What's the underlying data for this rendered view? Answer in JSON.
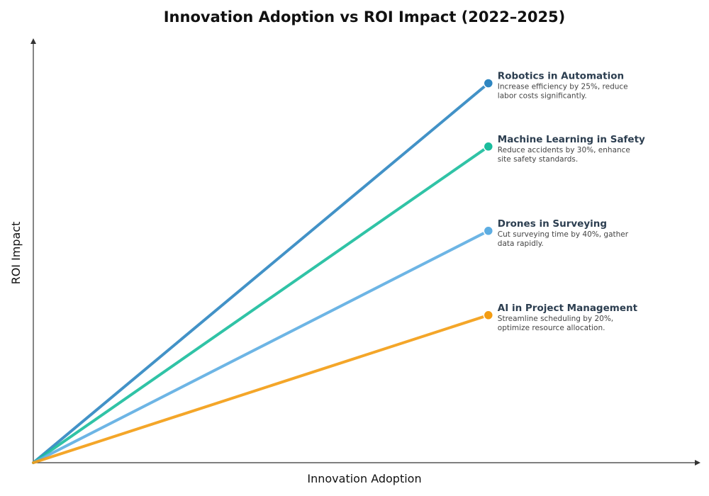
{
  "chart_data": {
    "type": "line",
    "title": "Innovation Adoption vs ROI Impact (2022–2025)",
    "xlabel": "Innovation Adoption",
    "ylabel": "ROI Impact",
    "grid": false,
    "legend": "inline labels at line ends (right)",
    "xlim": [
      0,
      1
    ],
    "ylim": [
      0,
      1
    ],
    "series": [
      {
        "name": "Robotics in Automation",
        "description": [
          "Increase efficiency by 25%, reduce",
          "labor costs significantly."
        ],
        "x": [
          0,
          0.685
        ],
        "y": [
          0,
          0.9
        ],
        "color": "#2e86c1"
      },
      {
        "name": "Machine Learning in Safety",
        "description": [
          "Reduce accidents by 30%, enhance",
          "site safety standards."
        ],
        "x": [
          0,
          0.685
        ],
        "y": [
          0,
          0.75
        ],
        "color": "#1abc9c"
      },
      {
        "name": "Drones in Surveying",
        "description": [
          "Cut surveying time by 40%, gather",
          "data rapidly."
        ],
        "x": [
          0,
          0.685
        ],
        "y": [
          0,
          0.55
        ],
        "color": "#5dade2"
      },
      {
        "name": "AI in Project Management",
        "description": [
          "Streamline scheduling by 20%,",
          "optimize resource allocation."
        ],
        "x": [
          0,
          0.685
        ],
        "y": [
          0,
          0.35
        ],
        "color": "#f39c12"
      }
    ]
  }
}
